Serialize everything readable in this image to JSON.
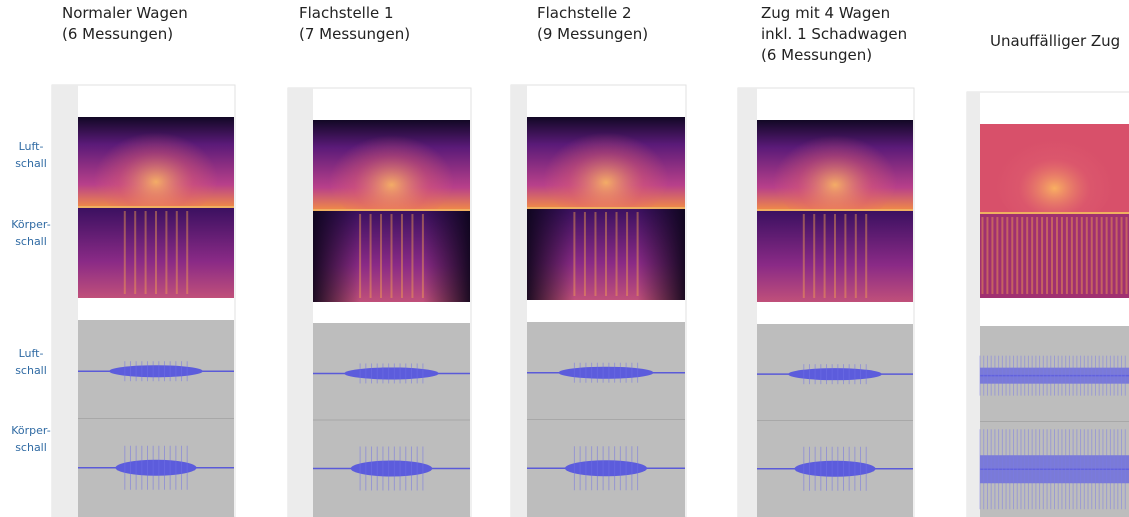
{
  "columns": [
    {
      "title": [
        "Normaler Wagen",
        "(6 Messungen)"
      ]
    },
    {
      "title": [
        "Flachstelle 1",
        "(7 Messungen)"
      ]
    },
    {
      "title": [
        "Flachstelle 2",
        "(9 Messungen)"
      ]
    },
    {
      "title": [
        "Zug mit 4 Wagen",
        "inkl. 1 Schadwagen",
        "(6 Messungen)"
      ]
    },
    {
      "title": [
        "Unauffälliger Zug"
      ]
    }
  ],
  "row_labels": {
    "spectrogram": [
      [
        "Luft-",
        "schall"
      ],
      [
        "Körper-",
        "schall"
      ]
    ],
    "waveform": [
      [
        "Luft-",
        "schall"
      ],
      [
        "Körper-",
        "schall"
      ]
    ]
  }
}
